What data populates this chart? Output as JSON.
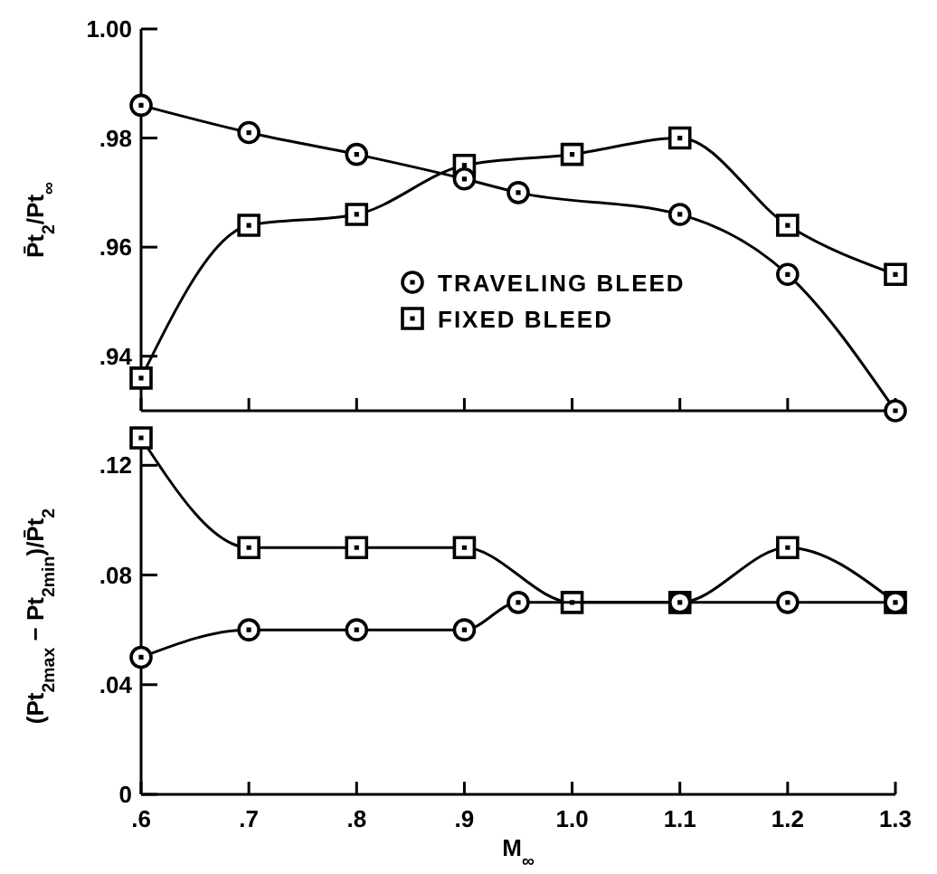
{
  "chart_data": [
    {
      "type": "line",
      "ylabel": "P̄t$_{2}$/Pt$_{∞}$",
      "xlim": [
        0.6,
        1.3
      ],
      "xticks": [
        {
          "value": 0.6,
          "label": null
        },
        {
          "value": 0.7,
          "label": null
        },
        {
          "value": 0.8,
          "label": null
        },
        {
          "value": 0.9,
          "label": null
        },
        {
          "value": 1.0,
          "label": null
        },
        {
          "value": 1.1,
          "label": null
        },
        {
          "value": 1.2,
          "label": null
        },
        {
          "value": 1.3,
          "label": null
        }
      ],
      "ylim": [
        0.93,
        1.0
      ],
      "yticks": [
        {
          "value": 0.94,
          "label": ".94"
        },
        {
          "value": 0.96,
          "label": ".96"
        },
        {
          "value": 0.98,
          "label": ".98"
        },
        {
          "value": 1.0,
          "label": "1.00"
        }
      ],
      "tick_labels": "y",
      "grid": false,
      "legend": "center",
      "series": [
        {
          "name": "TRAVELING BLEED",
          "color": "#000000",
          "marker": "circle",
          "x": [
            0.6,
            0.7,
            0.8,
            0.9,
            0.95,
            1.1,
            1.2,
            1.3
          ],
          "values": [
            0.986,
            0.981,
            0.977,
            0.9725,
            0.97,
            0.966,
            0.955,
            0.93
          ]
        },
        {
          "name": "FIXED BLEED",
          "color": "#000000",
          "marker": "square",
          "x": [
            0.6,
            0.7,
            0.8,
            0.9,
            1.0,
            1.1,
            1.2,
            1.3
          ],
          "values": [
            0.936,
            0.964,
            0.966,
            0.975,
            0.977,
            0.98,
            0.964,
            0.955
          ]
        }
      ]
    },
    {
      "type": "line",
      "ylabel": "(Pt$_{2max}$ − Pt$_{2min}$)/P̄t$_{2}$",
      "xlabel": "M$_{∞}$",
      "xlim": [
        0.6,
        1.3
      ],
      "xticks": [
        {
          "value": 0.6,
          "label": ".6"
        },
        {
          "value": 0.7,
          "label": ".7"
        },
        {
          "value": 0.8,
          "label": ".8"
        },
        {
          "value": 0.9,
          "label": ".9"
        },
        {
          "value": 1.0,
          "label": "1.0"
        },
        {
          "value": 1.1,
          "label": "1.1"
        },
        {
          "value": 1.2,
          "label": "1.2"
        },
        {
          "value": 1.3,
          "label": "1.3"
        }
      ],
      "ylim": [
        0,
        0.13
      ],
      "yticks": [
        0,
        {
          "value": 0.04,
          "label": ".04"
        },
        {
          "value": 0.08,
          "label": ".08"
        },
        {
          "value": 0.12,
          "label": ".12"
        }
      ],
      "grid": false,
      "legend": false,
      "series": [
        {
          "color": "#000000",
          "marker": "circle",
          "x": [
            0.6,
            0.7,
            0.8,
            0.9,
            0.95,
            1.1,
            1.2,
            1.3
          ],
          "values": [
            0.05,
            0.06,
            0.06,
            0.06,
            0.07,
            0.07,
            0.07,
            0.07
          ]
        },
        {
          "color": "#000000",
          "marker": "square",
          "x": [
            0.6,
            0.7,
            0.8,
            0.9,
            1.0,
            1.1,
            1.2,
            1.3
          ],
          "values": [
            0.13,
            0.09,
            0.09,
            0.09,
            0.07,
            0.07,
            0.09,
            0.07
          ]
        }
      ]
    }
  ]
}
